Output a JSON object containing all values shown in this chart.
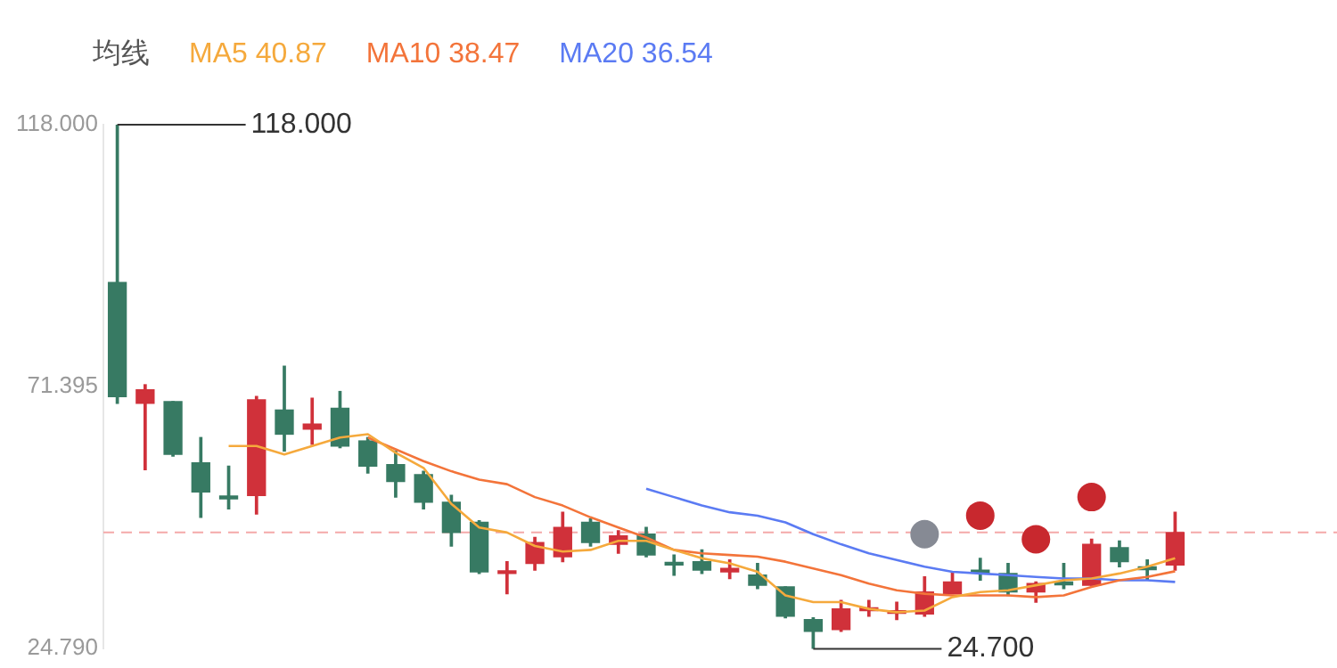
{
  "chart_data": {
    "type": "candlestick",
    "legend_title": "均线",
    "legend": "top left",
    "grid": false,
    "tick_labels": "y",
    "categories": [
      null,
      null,
      null,
      null,
      null,
      null,
      null,
      null,
      null,
      null,
      null,
      null,
      null,
      null,
      null,
      null,
      null,
      null,
      null,
      null,
      null,
      null,
      null,
      null,
      null,
      null,
      null,
      null,
      null,
      null,
      null,
      null,
      null,
      null,
      null,
      null,
      null,
      null,
      null
    ],
    "ylim": [
      24.7,
      118
    ],
    "yticks": [
      {
        "value": 24.79,
        "label": "24.790"
      },
      {
        "value": 71.395,
        "label": "71.395"
      },
      {
        "value": 118,
        "label": "118.000"
      }
    ],
    "ohlc": [
      [
        89.9,
        118,
        68.4,
        69.6
      ],
      [
        68.4,
        71.7,
        56.6,
        70.8
      ],
      [
        68.7,
        68.7,
        59.0,
        59.3
      ],
      [
        57.8,
        62.3,
        48.1,
        52.6
      ],
      [
        51.7,
        57.2,
        49.6,
        51.4
      ],
      [
        52.0,
        69.6,
        48.7,
        69.0
      ],
      [
        67.2,
        75.0,
        59.9,
        62.9
      ],
      [
        63.8,
        69.3,
        61.1,
        64.7
      ],
      [
        67.5,
        70.5,
        60.5,
        60.8
      ],
      [
        61.7,
        62.3,
        56.0,
        57.2
      ],
      [
        57.5,
        59.9,
        51.7,
        54.5
      ],
      [
        55.7,
        56.3,
        49.6,
        50.8
      ],
      [
        50.8,
        52.0,
        43.0,
        45.4
      ],
      [
        47.2,
        47.5,
        38.1,
        38.4
      ],
      [
        38.1,
        40.2,
        34.5,
        38.4
      ],
      [
        39.9,
        44.5,
        38.7,
        43.6
      ],
      [
        41.1,
        49.0,
        40.2,
        46.3
      ],
      [
        47.2,
        47.8,
        43.0,
        43.6
      ],
      [
        43.3,
        45.7,
        41.7,
        44.8
      ],
      [
        45.1,
        46.3,
        41.1,
        41.4
      ],
      [
        39.9,
        41.4,
        37.8,
        39.6
      ],
      [
        40.2,
        42.3,
        38.1,
        38.7
      ],
      [
        38.4,
        40.5,
        37.2,
        39.0
      ],
      [
        37.8,
        39.9,
        35.4,
        36.0
      ],
      [
        35.7,
        35.7,
        30.2,
        30.5
      ],
      [
        29.9,
        30.2,
        24.7,
        27.8
      ],
      [
        28.1,
        33.3,
        27.8,
        31.8
      ],
      [
        31.5,
        33.3,
        30.5,
        31.8
      ],
      [
        31.0,
        33.0,
        29.9,
        31.2
      ],
      [
        30.9,
        37.5,
        30.5,
        34.8
      ],
      [
        34.5,
        38.4,
        34.5,
        36.6
      ],
      [
        38.4,
        40.8,
        36.9,
        38.2
      ],
      [
        38.1,
        39.9,
        34.2,
        34.8
      ],
      [
        34.8,
        36.6,
        33.0,
        36.3
      ],
      [
        36.3,
        39.9,
        35.4,
        36.1
      ],
      [
        36.0,
        44.2,
        36.0,
        43.3
      ],
      [
        42.7,
        43.9,
        39.3,
        40.2
      ],
      [
        39.0,
        40.5,
        36.9,
        38.8
      ],
      [
        39.6,
        49.0,
        38.7,
        45.4
      ]
    ],
    "colors": [
      "#377a63",
      "#d0313a",
      "#377a63",
      "#377a63",
      "#377a63",
      "#d0313a",
      "#377a63",
      "#d0313a",
      "#377a63",
      "#377a63",
      "#377a63",
      "#377a63",
      "#377a63",
      "#377a63",
      "#d0313a",
      "#d0313a",
      "#d0313a",
      "#377a63",
      "#d0313a",
      "#377a63",
      "#377a63",
      "#377a63",
      "#d0313a",
      "#377a63",
      "#377a63",
      "#377a63",
      "#d0313a",
      "#d0313a",
      "#d0313a",
      "#d0313a",
      "#d0313a",
      "#377a63",
      "#377a63",
      "#d0313a",
      "#377a63",
      "#d0313a",
      "#377a63",
      "#377a63",
      "#d0313a"
    ],
    "series": [
      {
        "name": "MA5 40.87",
        "type": "line",
        "color": "#f5a93c",
        "values": [
          null,
          null,
          null,
          null,
          60.8,
          60.8,
          59.3,
          60.8,
          62.3,
          62.9,
          59.6,
          56.9,
          50.5,
          46.3,
          45.4,
          43.0,
          42.0,
          42.3,
          43.9,
          43.9,
          42.3,
          40.8,
          39.9,
          38.4,
          34.2,
          33.0,
          33.0,
          31.8,
          31.2,
          31.5,
          33.9,
          34.8,
          35.1,
          36.0,
          36.9,
          37.2,
          38.1,
          39.3,
          40.8
        ]
      },
      {
        "name": "MA10 38.47",
        "type": "line",
        "color": "#f3743a",
        "values": [
          null,
          null,
          null,
          null,
          null,
          null,
          null,
          null,
          null,
          62.3,
          60.2,
          58.1,
          56.3,
          54.8,
          54.0,
          51.7,
          50.2,
          48.1,
          46.3,
          44.5,
          42.3,
          41.7,
          41.4,
          41.1,
          40.2,
          39.0,
          37.8,
          36.3,
          35.1,
          34.5,
          34.2,
          34.2,
          34.2,
          33.9,
          34.2,
          35.7,
          36.9,
          37.5,
          38.5
        ]
      },
      {
        "name": "MA20 36.54",
        "type": "line",
        "color": "#5b7bf3",
        "values": [
          null,
          null,
          null,
          null,
          null,
          null,
          null,
          null,
          null,
          null,
          null,
          null,
          null,
          null,
          null,
          null,
          null,
          null,
          null,
          53.2,
          51.7,
          50.2,
          49.0,
          48.4,
          47.2,
          45.1,
          43.3,
          41.7,
          40.5,
          39.3,
          38.4,
          38.1,
          37.8,
          37.5,
          37.2,
          37.2,
          36.9,
          36.9,
          36.6
        ]
      },
      {
        "type": "scatter",
        "marker": "circle",
        "color": "#c8282e",
        "colors": [
          null,
          null,
          null,
          null,
          null,
          null,
          null,
          null,
          null,
          null,
          null,
          null,
          null,
          null,
          null,
          null,
          null,
          null,
          null,
          null,
          null,
          null,
          null,
          null,
          null,
          null,
          null,
          null,
          null,
          "#868a94",
          null,
          "#c8282e",
          null,
          "#c8282e",
          null,
          "#c8282e",
          null,
          null,
          null
        ],
        "values": [
          null,
          null,
          null,
          null,
          null,
          null,
          null,
          null,
          null,
          null,
          null,
          null,
          null,
          null,
          null,
          null,
          null,
          null,
          null,
          null,
          null,
          null,
          null,
          null,
          null,
          null,
          null,
          null,
          null,
          45.1,
          null,
          48.4,
          null,
          44.2,
          null,
          51.7,
          null,
          null,
          null
        ]
      }
    ],
    "ref_lines": [
      {
        "axis": "y",
        "value": 45.4,
        "color": "#f4a9a9",
        "line_style": "dashed"
      }
    ],
    "annotations": [
      "118.000",
      "24.700"
    ]
  }
}
